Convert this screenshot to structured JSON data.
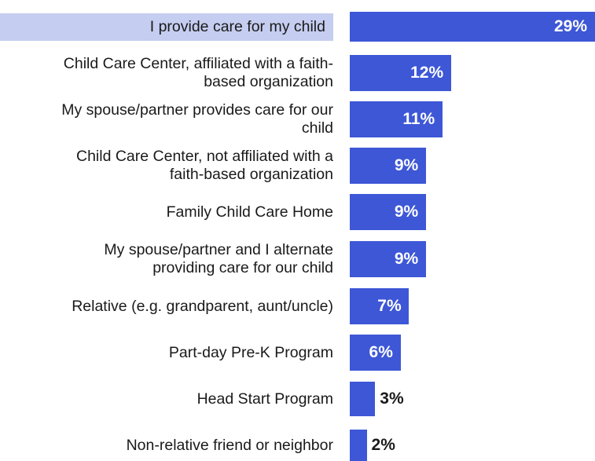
{
  "chart_data": {
    "type": "bar",
    "orientation": "horizontal",
    "categories": [
      "I provide care for my child",
      "Child Care Center, affiliated with a faith-based organization",
      "My spouse/partner provides care for our child",
      "Child Care Center, not affiliated with a faith-based organization",
      "Family Child Care Home",
      "My spouse/partner and I alternate providing care for our child",
      "Relative (e.g. grandparent, aunt/uncle)",
      "Part-day Pre-K Program",
      "Head Start Program",
      "Non-relative friend or neighbor"
    ],
    "label_lines": [
      [
        "I provide care for my child"
      ],
      [
        "Child Care Center, affiliated with a faith-",
        "based organization"
      ],
      [
        "My spouse/partner provides care for our",
        "child"
      ],
      [
        "Child Care Center, not affiliated with a",
        "faith-based organization"
      ],
      [
        "Family Child Care Home"
      ],
      [
        "My spouse/partner and I alternate",
        "providing care for our child"
      ],
      [
        "Relative (e.g. grandparent, aunt/uncle)"
      ],
      [
        "Part-day Pre-K Program"
      ],
      [
        "Head Start Program"
      ],
      [
        "Non-relative friend or neighbor"
      ]
    ],
    "values": [
      29,
      12,
      11,
      9,
      9,
      9,
      7,
      6,
      3,
      2
    ],
    "data_labels": [
      "29%",
      "12%",
      "11%",
      "9%",
      "9%",
      "9%",
      "7%",
      "6%",
      "3%",
      "2%"
    ],
    "highlighted_category": "I provide care for my child",
    "xlim": [
      0,
      29
    ],
    "colors": {
      "bar": "#3d57d6",
      "highlight": "#c5cdf0"
    }
  }
}
